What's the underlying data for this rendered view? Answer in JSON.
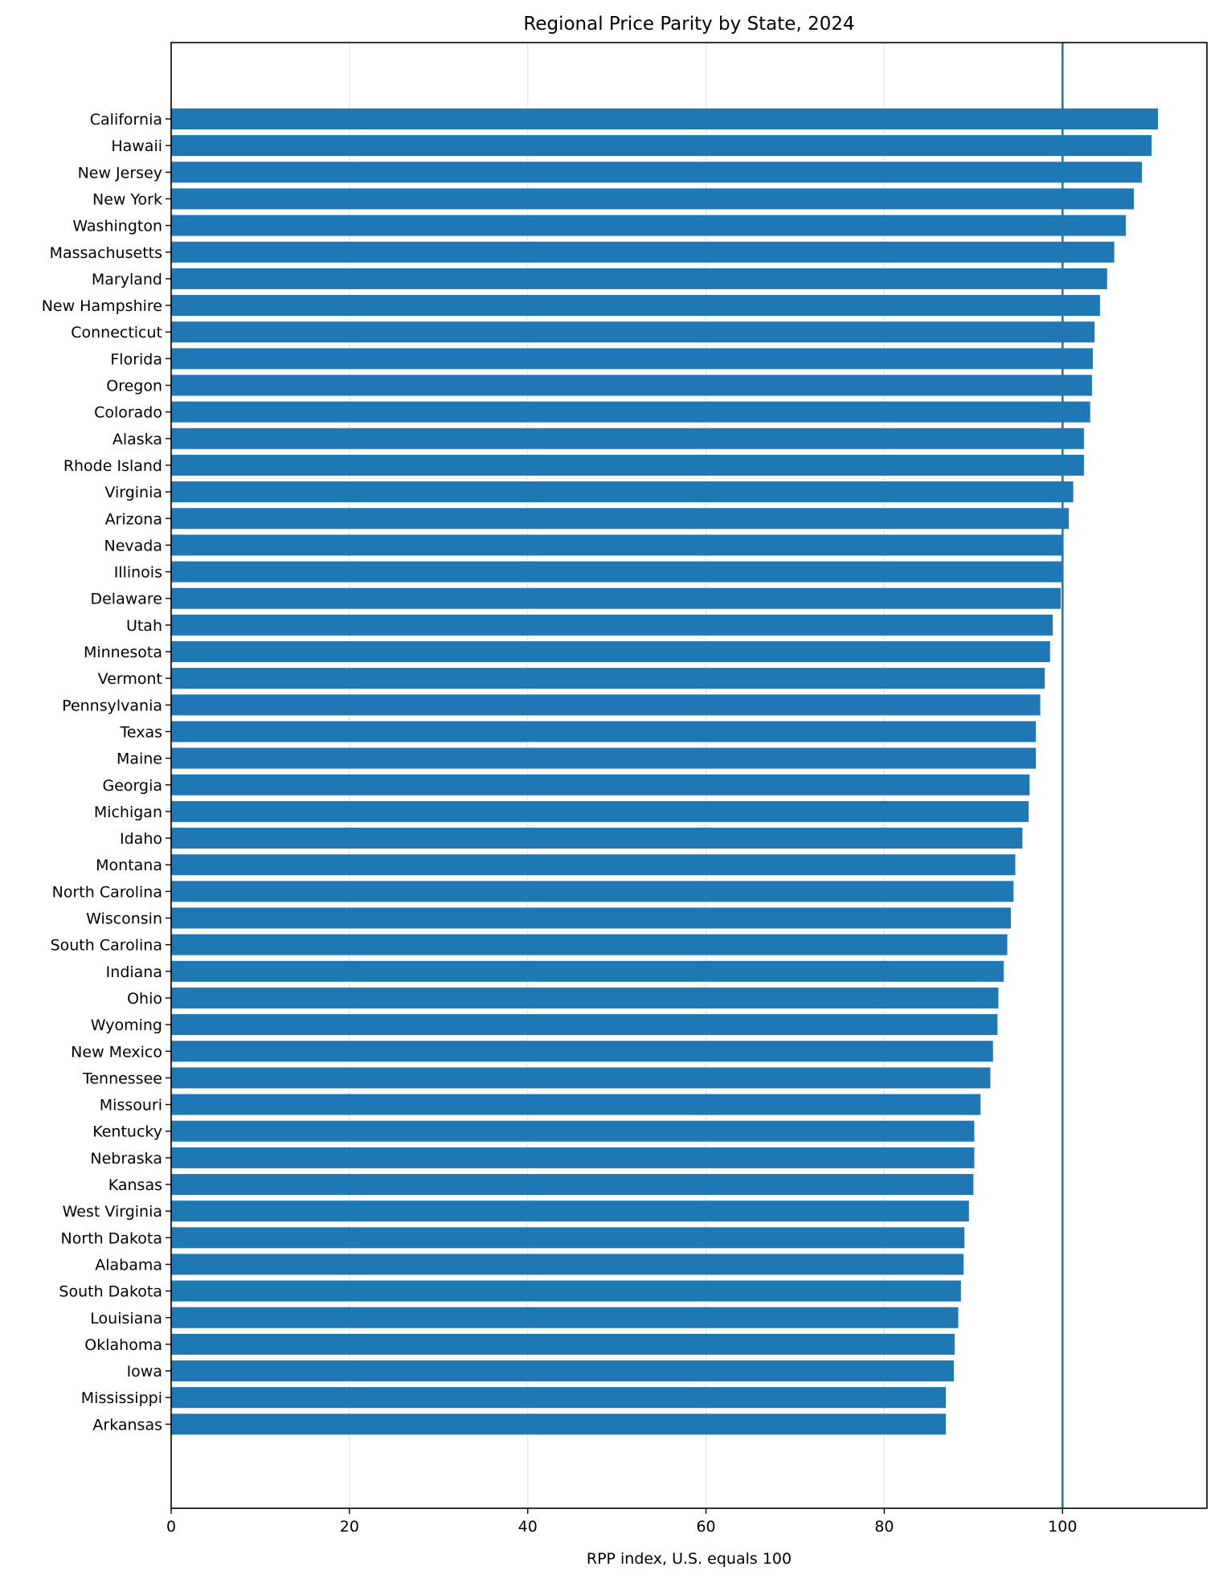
{
  "chart_data": {
    "type": "bar",
    "orientation": "horizontal",
    "title": "Regional Price Parity by State, 2024",
    "xlabel": "RPP index, U.S. equals 100",
    "ylabel": "",
    "xlim": [
      0,
      116.2
    ],
    "xticks": [
      0,
      20,
      40,
      60,
      80,
      100
    ],
    "grid": "vertical",
    "bar_color": "#1f77b4",
    "reference_line": {
      "value": 100,
      "color": "#1f77b4"
    },
    "categories": [
      "California",
      "Hawaii",
      "New Jersey",
      "New York",
      "Washington",
      "Massachusetts",
      "Maryland",
      "New Hampshire",
      "Connecticut",
      "Florida",
      "Oregon",
      "Colorado",
      "Alaska",
      "Rhode Island",
      "Virginia",
      "Arizona",
      "Nevada",
      "Illinois",
      "Delaware",
      "Utah",
      "Minnesota",
      "Vermont",
      "Pennsylvania",
      "Texas",
      "Maine",
      "Georgia",
      "Michigan",
      "Idaho",
      "Montana",
      "North Carolina",
      "Wisconsin",
      "South Carolina",
      "Indiana",
      "Ohio",
      "Wyoming",
      "New Mexico",
      "Tennessee",
      "Missouri",
      "Kentucky",
      "Nebraska",
      "Kansas",
      "West Virginia",
      "North Dakota",
      "Alabama",
      "South Dakota",
      "Louisiana",
      "Oklahoma",
      "Iowa",
      "Mississippi",
      "Arkansas"
    ],
    "values": [
      110.7,
      110.0,
      108.9,
      108.0,
      107.1,
      105.8,
      105.0,
      104.2,
      103.6,
      103.4,
      103.3,
      103.1,
      102.4,
      102.4,
      101.2,
      100.7,
      100.0,
      100.0,
      99.8,
      98.9,
      98.6,
      98.0,
      97.5,
      97.0,
      97.0,
      96.3,
      96.2,
      95.5,
      94.7,
      94.5,
      94.2,
      93.8,
      93.4,
      92.8,
      92.7,
      92.2,
      91.9,
      90.8,
      90.1,
      90.1,
      90.0,
      89.5,
      89.0,
      88.9,
      88.6,
      88.3,
      87.9,
      87.8,
      86.9,
      86.9
    ]
  }
}
